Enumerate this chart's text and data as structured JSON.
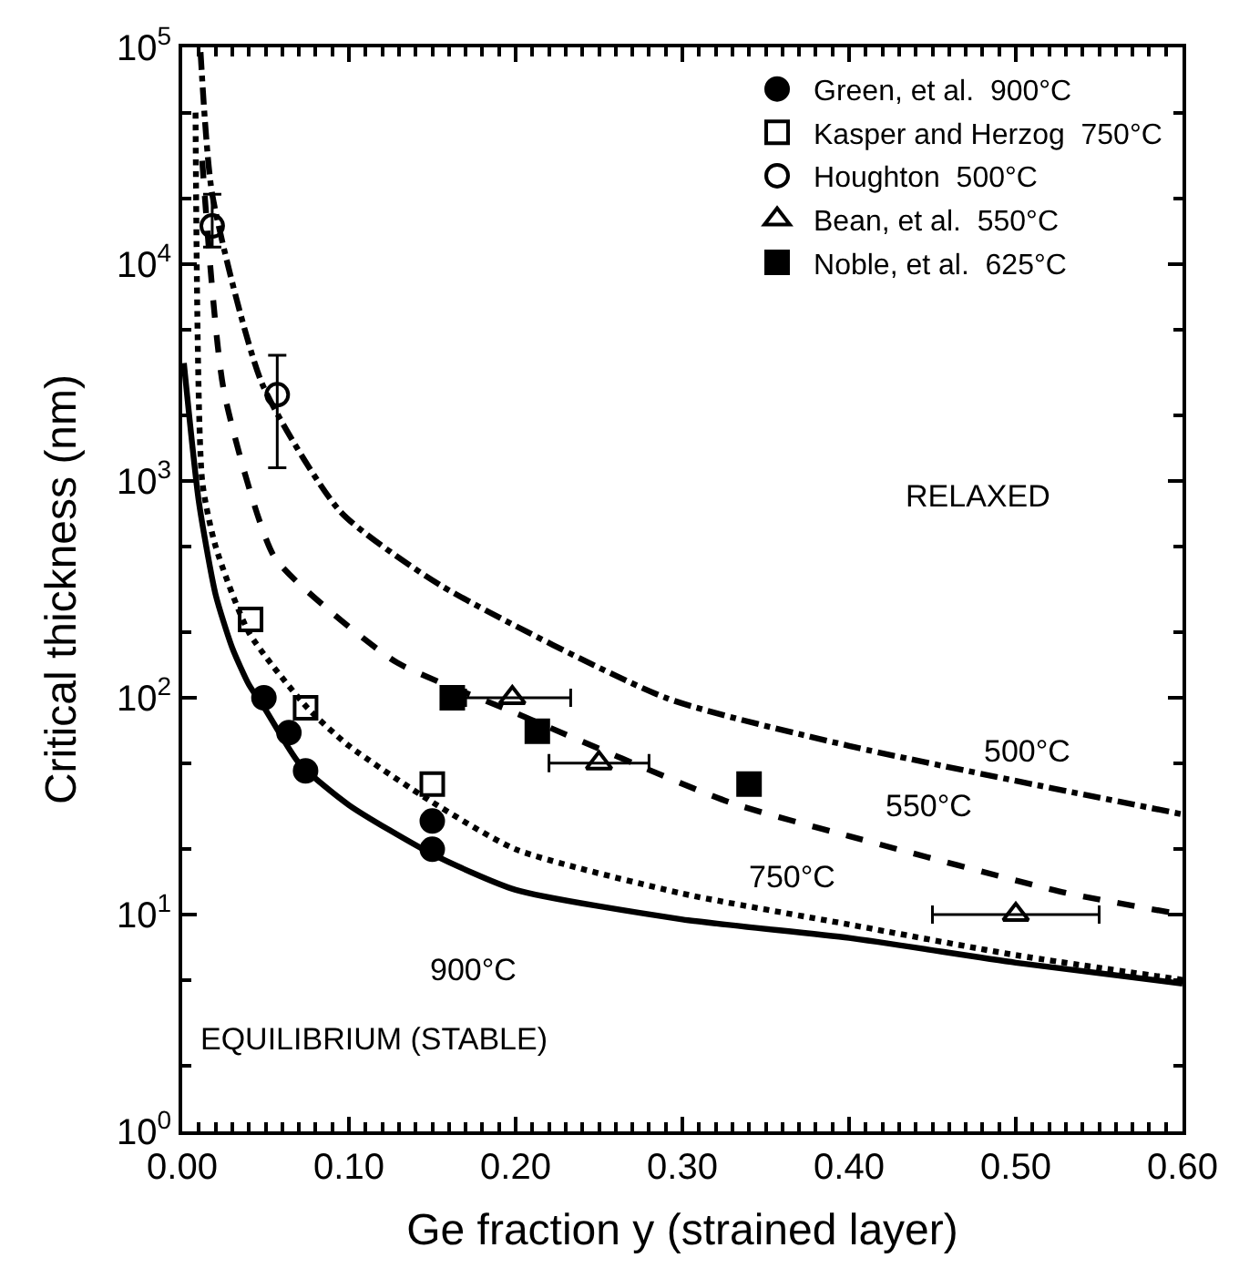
{
  "chart_data": {
    "type": "line",
    "xlabel": "Ge fraction y (strained layer)",
    "ylabel": "Critical thickness (nm)",
    "xlim": [
      0,
      0.6
    ],
    "ylim": [
      1,
      100000
    ],
    "log": "y",
    "grid": false,
    "legend": "top right",
    "xticks": [
      {
        "value": 0,
        "label": "0.00"
      },
      {
        "value": 0.1,
        "label": "0.10"
      },
      {
        "value": 0.2,
        "label": "0.20"
      },
      {
        "value": 0.3,
        "label": "0.30"
      },
      {
        "value": 0.4,
        "label": "0.40"
      },
      {
        "value": 0.5,
        "label": "0.50"
      },
      {
        "value": 0.6,
        "label": "0.60"
      }
    ],
    "yticks": [
      {
        "value": 1,
        "label": "10$^{0}$"
      },
      {
        "value": 10,
        "label": "10$^{1}$"
      },
      {
        "value": 100,
        "label": "10$^{2}$"
      },
      {
        "value": 1000,
        "label": "10$^{3}$"
      },
      {
        "value": 10000,
        "label": "10$^{4}$"
      },
      {
        "value": 100000,
        "label": "10$^{5}$"
      }
    ],
    "series": [
      {
        "line_style": "solid",
        "color": "#000000",
        "x": [
          0.001,
          0.01,
          0.02,
          0.03,
          0.04,
          0.05,
          0.07,
          0.1,
          0.15,
          0.2,
          0.3,
          0.4,
          0.5,
          0.6
        ],
        "values": [
          3500,
          800,
          300,
          170,
          115,
          88,
          50,
          32,
          19,
          13,
          9.5,
          7.8,
          6,
          4.8
        ]
      },
      {
        "line_style": "dotted",
        "color": "#000000",
        "x": [
          0.008,
          0.012,
          0.02,
          0.04,
          0.075,
          0.1,
          0.15,
          0.2,
          0.3,
          0.4,
          0.5,
          0.6
        ],
        "values": [
          50000,
          1000,
          500,
          200,
          90,
          60,
          33,
          20,
          12.5,
          9,
          6.5,
          5
        ]
      },
      {
        "line_style": "dashed",
        "color": "#000000",
        "x": [
          0.012,
          0.025,
          0.055,
          0.089,
          0.129,
          0.2,
          0.328,
          0.4,
          0.53,
          0.6
        ],
        "values": [
          30000,
          2600,
          450,
          250,
          145,
          85,
          33,
          23,
          12.6,
          10
        ]
      },
      {
        "line_style": "dashdot",
        "color": "#000000",
        "x": [
          0.011,
          0.018,
          0.048,
          0.095,
          0.155,
          0.29,
          0.4,
          0.6
        ],
        "values": [
          95000,
          21000,
          2800,
          720,
          330,
          100,
          60,
          29
        ]
      },
      {
        "type": "scatter",
        "name": "Green, et al.  900°C",
        "marker": "circle",
        "color": "#000000",
        "x": [
          0.049,
          0.064,
          0.074,
          0.15,
          0.15
        ],
        "values": [
          100,
          69,
          46,
          27,
          20
        ]
      },
      {
        "type": "scatter",
        "name": "Kasper and Herzog  750°C",
        "marker": "square-open",
        "color": "#000000",
        "x": [
          0.041,
          0.074,
          0.15
        ],
        "values": [
          230,
          90,
          40
        ]
      },
      {
        "type": "scatter",
        "name": "Houghton  500°C",
        "marker": "circle-open",
        "color": "#000000",
        "x": [
          0.018,
          0.057
        ],
        "values": [
          15000,
          2500
        ],
        "errors": [
          [
            12000,
            21000
          ],
          [
            1150,
            3800
          ]
        ]
      },
      {
        "type": "scatter",
        "name": "Bean, et al.  550°C",
        "marker": "triangle-open",
        "color": "#000000",
        "x": [
          0.198,
          0.25,
          0.5
        ],
        "values": [
          100,
          50,
          10
        ],
        "xerrors": [
          [
            0.17,
            0.233
          ],
          [
            0.22,
            0.28
          ],
          [
            0.45,
            0.55
          ]
        ]
      },
      {
        "type": "scatter",
        "name": "Noble, et al.  625°C",
        "marker": "square",
        "color": "#000000",
        "x": [
          0.162,
          0.213,
          0.34
        ],
        "values": [
          100,
          70,
          40
        ]
      }
    ],
    "annotations": [
      "900°C",
      "750°C",
      "550°C",
      "500°C",
      "RELAXED",
      "EQUILIBRIUM (STABLE)"
    ]
  }
}
